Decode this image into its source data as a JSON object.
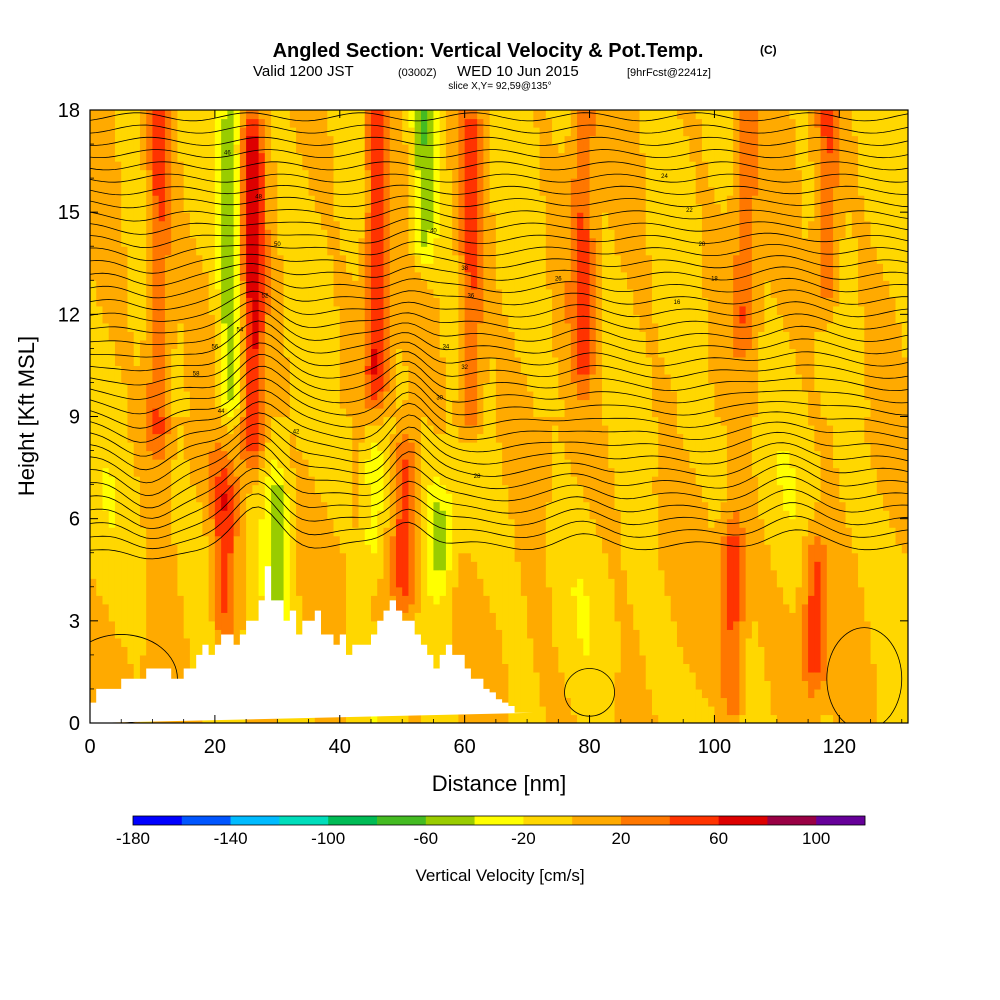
{
  "header": {
    "title": "Angled Section: Vertical Velocity & Pot.Temp.",
    "title_unit": "(C)",
    "valid_prefix": "Valid 1200 JST",
    "valid_zulu": "(0300Z)",
    "valid_date": "WED 10 Jun 2015",
    "forecast": "[9hrFcst@2241z]",
    "slice": "slice X,Y= 92,59@135°"
  },
  "chart_data": {
    "type": "heatmap",
    "title": "Angled Section: Vertical Velocity & Pot.Temp.",
    "xlabel": "Distance [nm]",
    "ylabel": "Height [Kft MSL]",
    "xlim": [
      0,
      131
    ],
    "ylim": [
      0,
      18
    ],
    "x_ticks": [
      0,
      20,
      40,
      60,
      80,
      100,
      120
    ],
    "y_ticks": [
      0,
      3,
      6,
      9,
      12,
      15,
      18
    ],
    "fill_variable": "Vertical Velocity [cm/s]",
    "contour_variable": "Pot.Temp. (C)",
    "colorbar": {
      "label": "Vertical Velocity [cm/s]",
      "levels": [
        -180,
        -160,
        -140,
        -120,
        -100,
        -80,
        -60,
        -40,
        -20,
        0,
        20,
        40,
        60,
        80,
        100,
        120
      ],
      "tick_labels": [
        "-180",
        "-140",
        "-100",
        "-60",
        "-20",
        "20",
        "60",
        "100"
      ],
      "colors": [
        "#0000ff",
        "#0055ff",
        "#00bbff",
        "#00ddbb",
        "#00bb55",
        "#44bb22",
        "#99cc00",
        "#ffff00",
        "#ffd700",
        "#ffaa00",
        "#ff7700",
        "#ff3300",
        "#dd0000",
        "#990044",
        "#660099"
      ]
    },
    "updrafts": [
      {
        "x": 11,
        "z_low": 9,
        "z_high": 18,
        "w": 50
      },
      {
        "x": 21.5,
        "z_low": 3,
        "z_high": 6.5,
        "w": 50
      },
      {
        "x": 26,
        "z_low": 8.5,
        "z_high": 17,
        "w": 65
      },
      {
        "x": 46,
        "z_low": 10.5,
        "z_high": 18,
        "w": 65
      },
      {
        "x": 50.5,
        "z_low": 4.5,
        "z_high": 7.5,
        "w": 60
      },
      {
        "x": 61,
        "z_low": 9.5,
        "z_high": 17,
        "w": 50
      },
      {
        "x": 79,
        "z_low": 11,
        "z_high": 18,
        "w": 45
      },
      {
        "x": 103,
        "z_low": 1,
        "z_high": 5,
        "w": 55
      },
      {
        "x": 105,
        "z_low": 12,
        "z_high": 18,
        "w": 40
      },
      {
        "x": 116,
        "z_low": 2,
        "z_high": 4.5,
        "w": 50
      },
      {
        "x": 118,
        "z_low": 13,
        "z_high": 18,
        "w": 45
      }
    ],
    "downdrafts": [
      {
        "x": 22.5,
        "z_low": 10,
        "z_high": 18,
        "w": -50
      },
      {
        "x": 30,
        "z_low": 4,
        "z_high": 6.5,
        "w": -45
      },
      {
        "x": 45.5,
        "z_low": 5.5,
        "z_high": 7.5,
        "w": -40
      },
      {
        "x": 53.5,
        "z_low": 14.5,
        "z_high": 18,
        "w": -55
      },
      {
        "x": 56,
        "z_low": 5,
        "z_high": 6,
        "w": -40
      }
    ],
    "terrain": {
      "x": [
        0,
        1,
        1,
        5,
        5,
        9,
        9,
        13,
        13,
        15,
        15,
        17,
        17,
        18,
        18,
        19,
        19,
        20,
        20,
        21,
        21,
        23,
        23,
        24,
        24,
        25,
        25,
        27,
        27,
        28,
        28,
        29,
        29,
        31,
        31,
        32,
        32,
        33,
        33,
        34,
        34,
        36,
        36,
        37,
        37,
        39,
        39,
        40,
        40,
        41,
        41,
        42,
        42,
        45,
        45,
        46,
        46,
        47,
        47,
        48,
        48,
        49,
        49,
        50,
        50,
        52,
        52,
        53,
        53,
        54,
        54,
        55,
        55,
        56,
        56,
        57,
        57,
        58,
        58,
        60,
        60,
        61,
        61,
        63,
        63,
        64,
        64,
        65,
        65,
        66,
        66,
        67,
        67,
        68,
        68,
        71,
        71,
        131
      ],
      "y": [
        0.6,
        0.6,
        1.0,
        1.0,
        1.3,
        1.3,
        1.6,
        1.6,
        1.3,
        1.3,
        1.6,
        1.6,
        2.0,
        2.0,
        2.3,
        2.3,
        2.0,
        2.0,
        2.3,
        2.3,
        2.6,
        2.6,
        2.3,
        2.3,
        2.6,
        2.6,
        3.0,
        3.0,
        3.6,
        3.6,
        4.6,
        4.6,
        3.6,
        3.6,
        3.0,
        3.0,
        3.3,
        3.3,
        2.6,
        2.6,
        3.0,
        3.0,
        3.3,
        3.3,
        2.6,
        2.6,
        2.3,
        2.3,
        2.6,
        2.6,
        2.0,
        2.0,
        2.3,
        2.3,
        2.6,
        2.6,
        3.0,
        3.0,
        3.3,
        3.3,
        3.6,
        3.6,
        3.3,
        3.3,
        3.0,
        3.0,
        2.6,
        2.6,
        2.3,
        2.3,
        2.0,
        2.0,
        1.6,
        1.6,
        2.0,
        2.0,
        2.3,
        2.3,
        2.0,
        2.0,
        1.6,
        1.6,
        1.3,
        1.3,
        1.0,
        1.0,
        0.9,
        0.9,
        0.7,
        0.7,
        0.6,
        0.6,
        0.5,
        0.5,
        0.3,
        0.3,
        0.3
      ]
    },
    "isentrope_count": 40,
    "contour_labels": [
      "46",
      "48",
      "50",
      "52",
      "54",
      "56",
      "58",
      "44",
      "42",
      "40",
      "38",
      "36",
      "34",
      "32",
      "30",
      "28",
      "26",
      "24",
      "22",
      "20",
      "18",
      "16"
    ]
  }
}
